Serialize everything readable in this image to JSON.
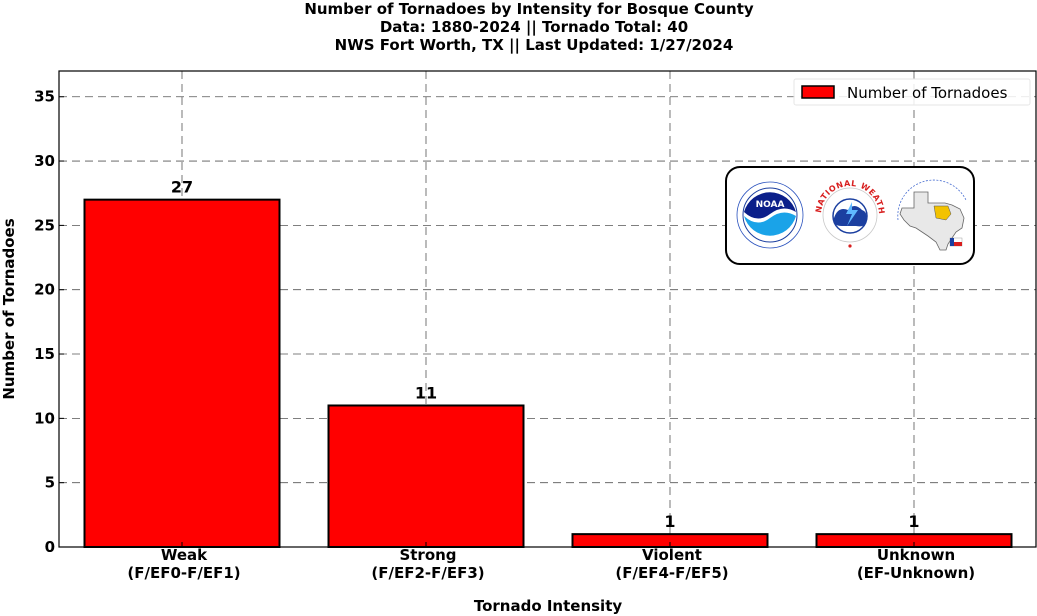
{
  "chart_data": {
    "type": "bar",
    "title_lines": [
      "Number of Tornadoes by Intensity for Bosque County",
      "Data: 1880-2024 || Tornado Total: 40",
      "NWS Fort Worth, TX || Last Updated: 1/27/2024"
    ],
    "xlabel": "Tornado Intensity",
    "ylabel": "Number of Tornadoes",
    "categories": [
      [
        "Weak",
        "(F/EF0-F/EF1)"
      ],
      [
        "Strong",
        "(F/EF2-F/EF3)"
      ],
      [
        "Violent",
        "(F/EF4-F/EF5)"
      ],
      [
        "Unknown",
        "(EF-Unknown)"
      ]
    ],
    "series": [
      {
        "name": "Number of Tornadoes",
        "values": [
          27,
          11,
          1,
          1
        ],
        "color": "#ff0000"
      }
    ],
    "ylim": [
      0,
      37
    ],
    "yticks": [
      0,
      5,
      10,
      15,
      20,
      25,
      30,
      35
    ],
    "grid": true,
    "legend_position": "top-right",
    "logos": {
      "noaa": "NOAA",
      "nws_ring": "NATIONAL WEATHER SERVICE"
    }
  }
}
